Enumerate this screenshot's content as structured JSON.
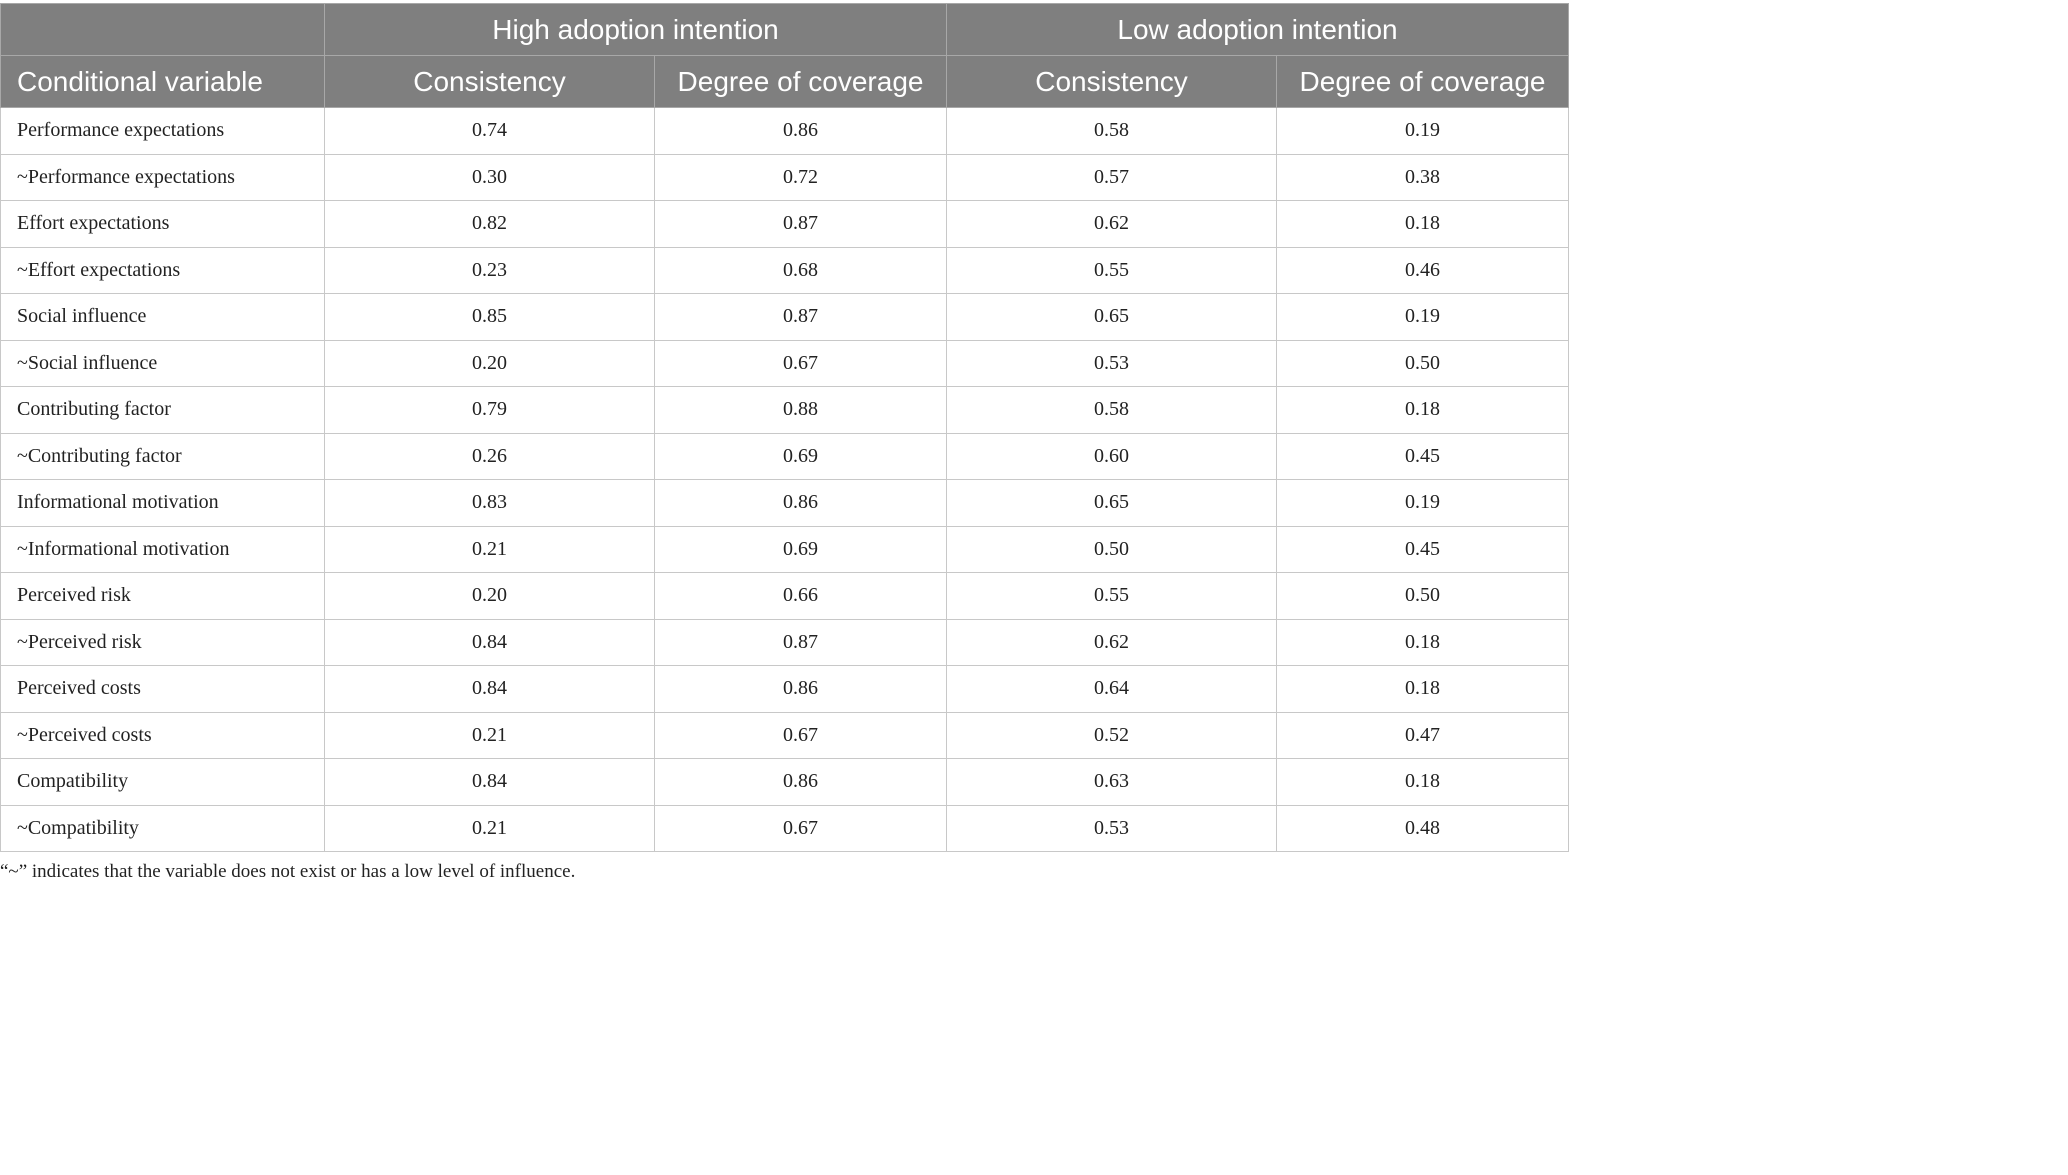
{
  "table": {
    "group_headers": {
      "blank": "",
      "high": "High adoption intention",
      "low": "Low adoption intention"
    },
    "column_headers": [
      "Conditional variable",
      "Consistency",
      "Degree of coverage",
      "Consistency",
      "Degree of coverage"
    ],
    "rows": [
      [
        "Performance expectations",
        "0.74",
        "0.86",
        "0.58",
        "0.19"
      ],
      [
        "~Performance expectations",
        "0.30",
        "0.72",
        "0.57",
        "0.38"
      ],
      [
        "Effort expectations",
        "0.82",
        "0.87",
        "0.62",
        "0.18"
      ],
      [
        "~Effort expectations",
        "0.23",
        "0.68",
        "0.55",
        "0.46"
      ],
      [
        "Social influence",
        "0.85",
        "0.87",
        "0.65",
        "0.19"
      ],
      [
        "~Social influence",
        "0.20",
        "0.67",
        "0.53",
        "0.50"
      ],
      [
        "Contributing factor",
        "0.79",
        "0.88",
        "0.58",
        "0.18"
      ],
      [
        "~Contributing factor",
        "0.26",
        "0.69",
        "0.60",
        "0.45"
      ],
      [
        "Informational motivation",
        "0.83",
        "0.86",
        "0.65",
        "0.19"
      ],
      [
        "~Informational motivation",
        "0.21",
        "0.69",
        "0.50",
        "0.45"
      ],
      [
        "Perceived risk",
        "0.20",
        "0.66",
        "0.55",
        "0.50"
      ],
      [
        "~Perceived risk",
        "0.84",
        "0.87",
        "0.62",
        "0.18"
      ],
      [
        "Perceived costs",
        "0.84",
        "0.86",
        "0.64",
        "0.18"
      ],
      [
        "~Perceived costs",
        "0.21",
        "0.67",
        "0.52",
        "0.47"
      ],
      [
        "Compatibility",
        "0.84",
        "0.86",
        "0.63",
        "0.18"
      ],
      [
        "~Compatibility",
        "0.21",
        "0.67",
        "0.53",
        "0.48"
      ]
    ]
  },
  "footnote": "“~” indicates that the variable does not exist or has a low level of influence.",
  "colors": {
    "header_bg": "#7f7f7f",
    "header_text": "#ffffff",
    "grid": "#c8c8c8"
  }
}
